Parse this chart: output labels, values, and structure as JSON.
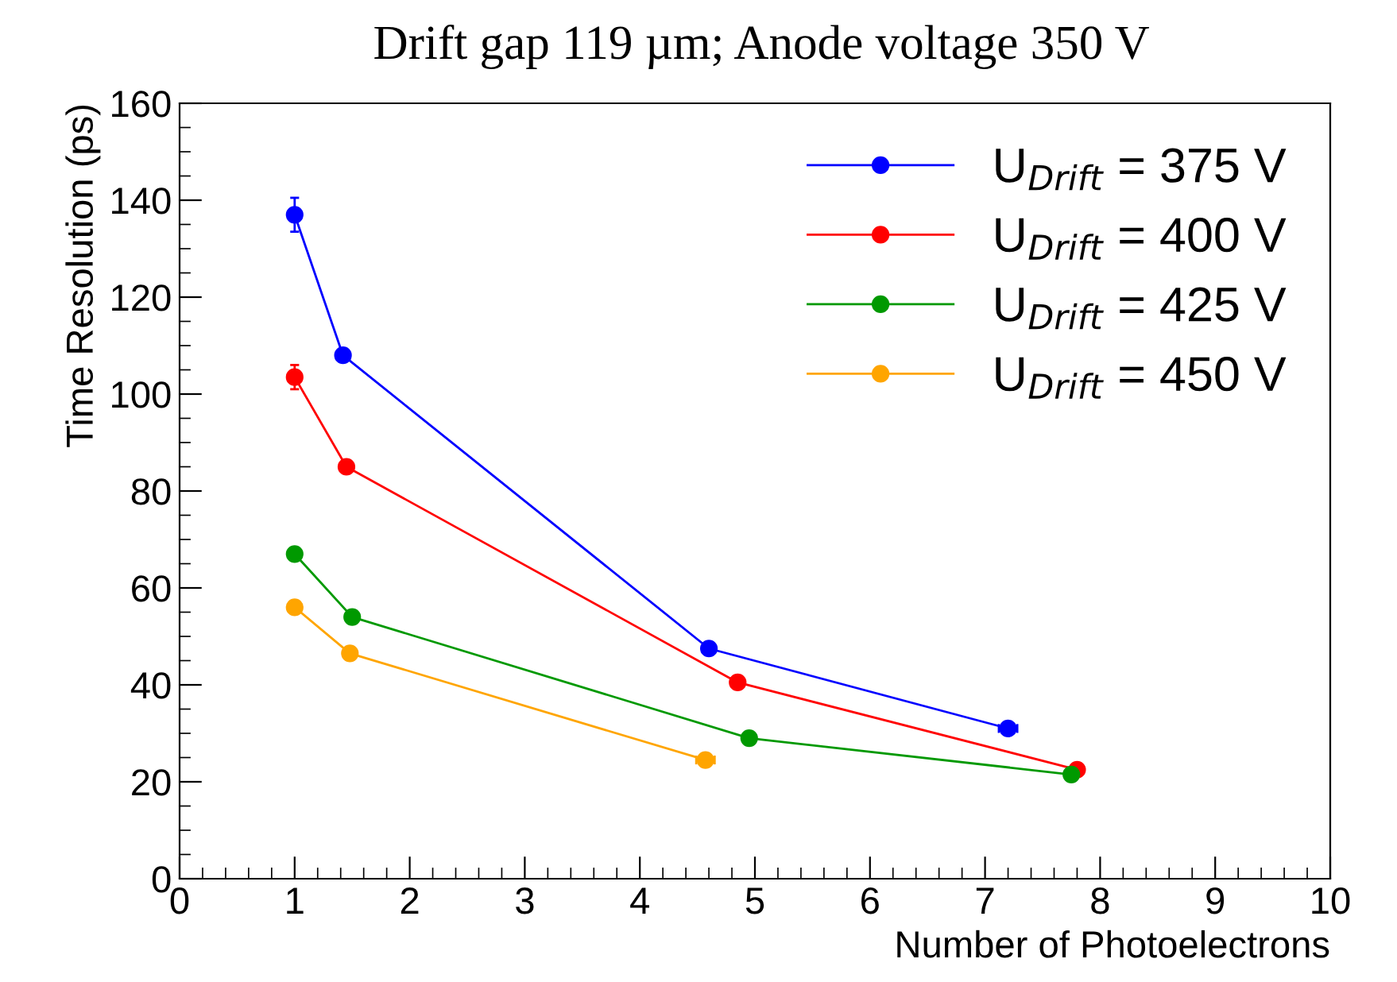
{
  "chart_data": {
    "type": "line",
    "title": "Drift gap 119 µm; Anode voltage 350 V",
    "xlabel": "Number of Photoelectrons",
    "ylabel": "Time Resolution (ps)",
    "xlim": [
      0,
      10
    ],
    "xticks": [
      0,
      1,
      2,
      3,
      4,
      5,
      6,
      7,
      8,
      9,
      10
    ],
    "ylim": [
      0,
      160
    ],
    "yticks": [
      0,
      20,
      40,
      60,
      80,
      100,
      120,
      140,
      160
    ],
    "marker": "circle",
    "line_style": "solid",
    "grid": false,
    "legend": "top right",
    "series": [
      {
        "name": "U$_{Drift}$ = 375 V",
        "color": "#0000ff",
        "x": [
          1.0,
          1.42,
          4.6,
          7.2
        ],
        "values": [
          137,
          108,
          47.5,
          31
        ],
        "errors": [
          3.5,
          null,
          null,
          null
        ],
        "xerrors": [
          null,
          null,
          null,
          0.08
        ]
      },
      {
        "name": "U$_{Drift}$ = 400 V",
        "color": "#ff0000",
        "x": [
          1.0,
          1.45,
          4.85,
          7.8
        ],
        "values": [
          103.5,
          85,
          40.5,
          22.5
        ],
        "errors": [
          2.5,
          null,
          null,
          null
        ]
      },
      {
        "name": "U$_{Drift}$ = 425 V",
        "color": "#009900",
        "x": [
          1.0,
          1.5,
          4.95,
          7.75
        ],
        "values": [
          67,
          54,
          29,
          21.5
        ]
      },
      {
        "name": "U$_{Drift}$ = 450 V",
        "color": "#ffa500",
        "x": [
          1.0,
          1.48,
          4.57
        ],
        "values": [
          56,
          46.5,
          24.5
        ],
        "xerrors": [
          null,
          null,
          0.08
        ]
      }
    ]
  }
}
